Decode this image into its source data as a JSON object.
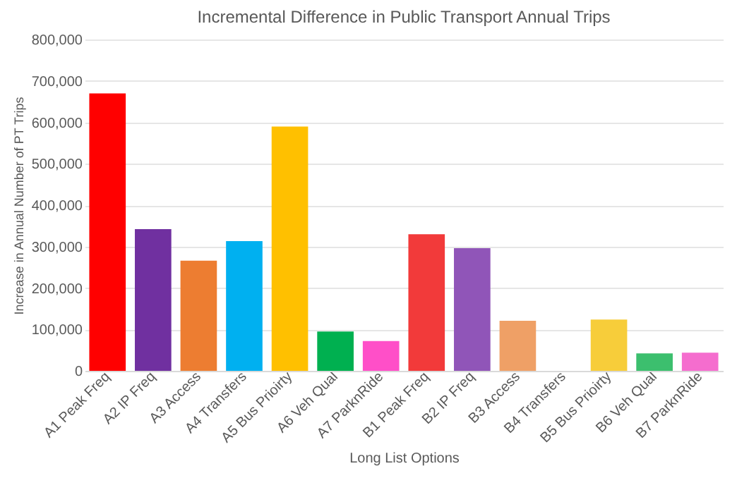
{
  "chart_data": {
    "type": "bar",
    "title": "Incremental Difference in Public Transport Annual Trips",
    "xlabel": "Long List Options",
    "ylabel": "Increase in Annual Number of PT Trips",
    "categories": [
      "A1 Peak Freq",
      "A2  IP Freq",
      "A3 Access",
      "A4 Transfers",
      "A5 Bus Prioirty",
      "A6 Veh Qual",
      "A7 ParknRide",
      "B1 Peak Freq",
      "B2  IP Freq",
      "B3 Access",
      "B4 Transfers",
      "B5 Bus Prioirty",
      "B6 Veh Qual",
      "B7 ParknRide"
    ],
    "values": [
      670000,
      342000,
      266000,
      313000,
      590000,
      95000,
      72000,
      330000,
      296000,
      121000,
      0,
      124000,
      42000,
      44000
    ],
    "colors": [
      "#ff0000",
      "#7030a0",
      "#ed7d31",
      "#00b0f0",
      "#ffc000",
      "#00b050",
      "#ff4fc8",
      "#f23a3a",
      "#9055b8",
      "#efa066",
      "#cccccc",
      "#f7cd3a",
      "#3cbf6e",
      "#f56dce"
    ],
    "ylim": [
      0,
      800000
    ],
    "yticks": [
      0,
      {
        "value": 100000,
        "label": "100,000"
      },
      {
        "value": 200000,
        "label": "200,000"
      },
      {
        "value": 300000,
        "label": "300,000"
      },
      {
        "value": 400000,
        "label": "400,000"
      },
      {
        "value": 500000,
        "label": "500,000"
      },
      {
        "value": 600000,
        "label": "600,000"
      },
      {
        "value": 700000,
        "label": "700,000"
      },
      {
        "value": 800000,
        "label": "800,000"
      }
    ],
    "grid": "y"
  }
}
